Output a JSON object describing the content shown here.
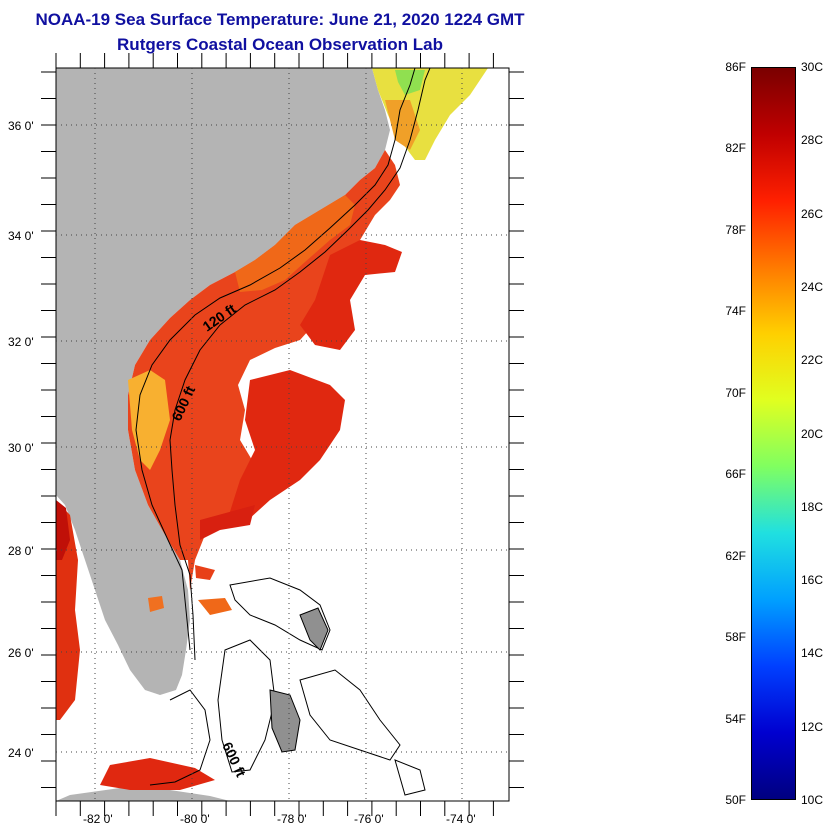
{
  "title": {
    "line1": "NOAA-19 Sea Surface Temperature:  June 21, 2020 1224 GMT",
    "line2": "Rutgers Coastal Ocean Observation Lab"
  },
  "map": {
    "lat_labels": [
      "36 0'",
      "34 0'",
      "32 0'",
      "30 0'",
      "28 0'",
      "26 0'",
      "24 0'"
    ],
    "lon_labels": [
      "-82 0'",
      "-80 0'",
      "-78 0'",
      "-76 0'",
      "-74 0'"
    ],
    "contour_labels": [
      "120 ft",
      "600 ft",
      "600 ft"
    ],
    "colors": {
      "land": "#b4b4b4",
      "ocean_warm": "#e83010",
      "ocean_hot": "#c81808"
    }
  },
  "colorbar": {
    "fahrenheit": [
      "86F",
      "82F",
      "78F",
      "74F",
      "70F",
      "66F",
      "62F",
      "58F",
      "54F",
      "50F"
    ],
    "celsius": [
      "30C",
      "28C",
      "26C",
      "24C",
      "22C",
      "20C",
      "18C",
      "16C",
      "14C",
      "12C",
      "10C"
    ],
    "gradient": [
      "#7a0000",
      "#c00000",
      "#ff2000",
      "#ff7a00",
      "#ffd000",
      "#e0ff20",
      "#80ff60",
      "#20e0e0",
      "#00a0ff",
      "#0040ff",
      "#0000d0",
      "#000080"
    ]
  }
}
